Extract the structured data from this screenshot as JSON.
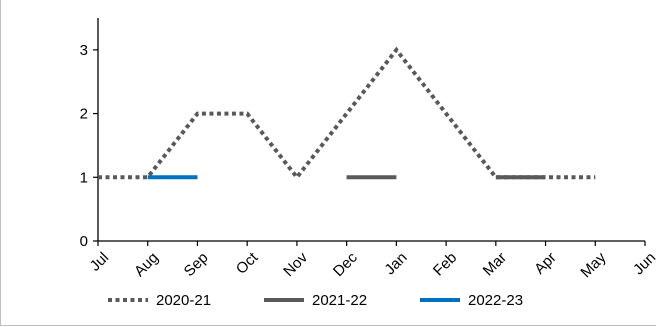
{
  "chart_data": {
    "type": "line",
    "categories": [
      "Jul",
      "Aug",
      "Sep",
      "Oct",
      "Nov",
      "Dec",
      "Jan",
      "Feb",
      "Mar",
      "Apr",
      "May",
      "Jun"
    ],
    "ylim": [
      0,
      3.5
    ],
    "yticks": [
      0,
      1,
      2,
      3
    ],
    "grid": false,
    "legend_position": "bottom",
    "series": [
      {
        "name": "2020-21",
        "color": "#595959",
        "style": "dotted",
        "values": [
          1,
          1,
          2,
          2,
          1,
          2,
          3,
          2,
          1,
          1,
          1,
          null
        ]
      },
      {
        "name": "2021-22",
        "color": "#595959",
        "style": "solid",
        "values": [
          null,
          null,
          null,
          null,
          null,
          1,
          1,
          null,
          1,
          1,
          null,
          null
        ]
      },
      {
        "name": "2022-23",
        "color": "#0070c0",
        "style": "solid",
        "values": [
          null,
          1,
          1,
          null,
          null,
          null,
          null,
          null,
          null,
          null,
          null,
          null
        ]
      }
    ]
  }
}
